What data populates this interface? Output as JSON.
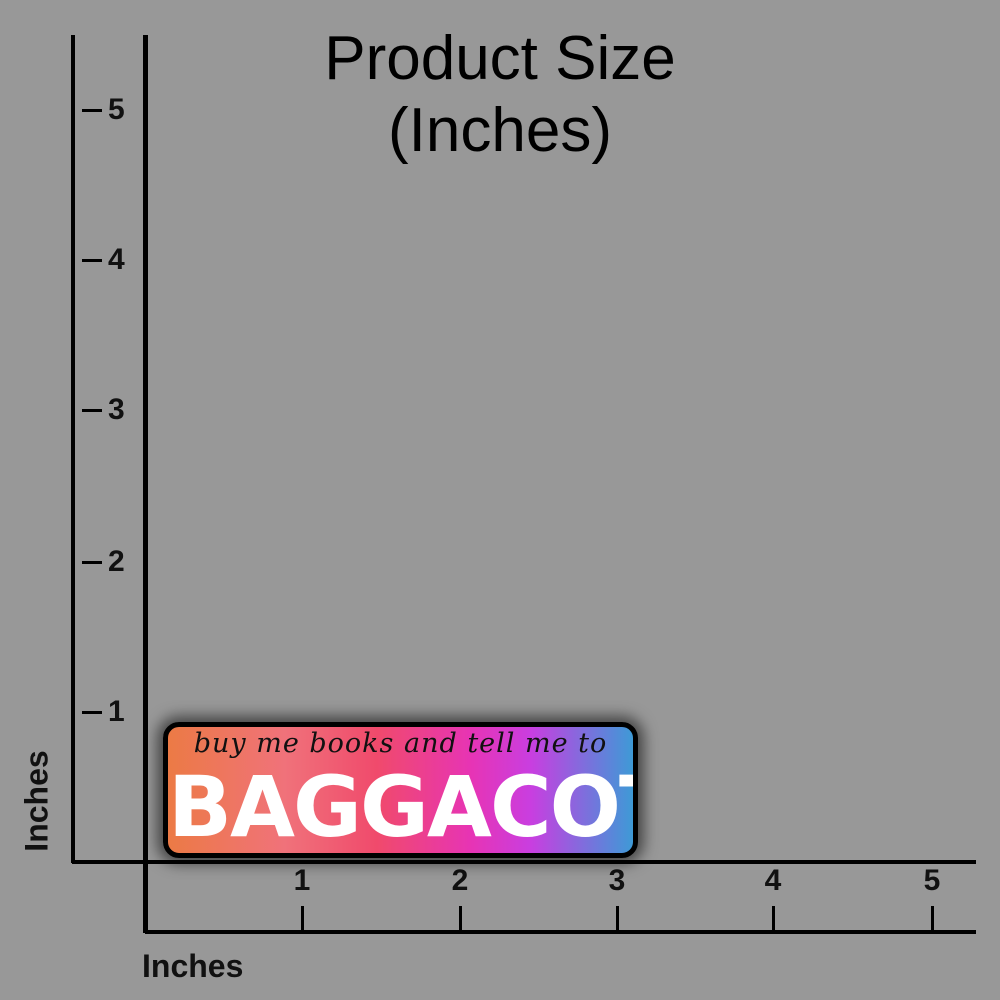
{
  "title": {
    "line1": "Product Size",
    "line2": "(Inches)"
  },
  "y_axis": {
    "label": "Inches",
    "ticks": [
      "5",
      "4",
      "3",
      "2",
      "1"
    ]
  },
  "x_axis": {
    "label": "Inches",
    "ticks": [
      "1",
      "2",
      "3",
      "4",
      "5"
    ]
  },
  "sticker": {
    "main_text": "BAGGACOTD",
    "script_text": "buy me books and tell me to",
    "width_in": 3,
    "height_in": 0.7,
    "colors": [
      "#ec7a45",
      "#f04a6c",
      "#e734b4",
      "#3e9ad6"
    ]
  }
}
